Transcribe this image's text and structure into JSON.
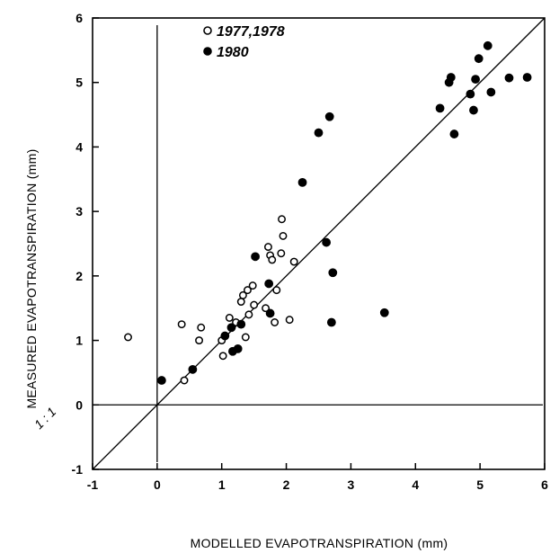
{
  "chart_data": {
    "type": "scatter",
    "title": "",
    "xlabel": "MODELLED EVAPOTRANSPIRATION (mm)",
    "ylabel": "MEASURED EVAPOTRANSPIRATION (mm)",
    "xlim": [
      -1,
      6
    ],
    "ylim": [
      -1,
      6
    ],
    "x_ticks": [
      "-1",
      "0",
      "1",
      "2",
      "3",
      "4",
      "5",
      "6"
    ],
    "y_ticks": [
      "-1",
      "0",
      "1",
      "2",
      "3",
      "4",
      "5",
      "6"
    ],
    "grid": false,
    "legend_position": "top-left",
    "reference_line": {
      "label": "1 : 1",
      "slope": 1,
      "intercept": 0
    },
    "reference_axes": {
      "x": 0,
      "y": 0
    },
    "series": [
      {
        "name": "1977,1978",
        "marker": "open-circle",
        "color": "#000000",
        "points": [
          [
            -0.45,
            1.05
          ],
          [
            0.38,
            1.25
          ],
          [
            0.42,
            0.38
          ],
          [
            0.68,
            1.2
          ],
          [
            0.65,
            1.0
          ],
          [
            1.0,
            1.0
          ],
          [
            1.02,
            0.76
          ],
          [
            1.12,
            1.35
          ],
          [
            1.22,
            1.28
          ],
          [
            1.3,
            1.6
          ],
          [
            1.33,
            1.7
          ],
          [
            1.37,
            1.05
          ],
          [
            1.4,
            1.78
          ],
          [
            1.42,
            1.4
          ],
          [
            1.48,
            1.85
          ],
          [
            1.5,
            1.55
          ],
          [
            1.68,
            1.5
          ],
          [
            1.72,
            2.45
          ],
          [
            1.75,
            2.32
          ],
          [
            1.78,
            2.25
          ],
          [
            1.82,
            1.28
          ],
          [
            1.85,
            1.78
          ],
          [
            1.92,
            2.35
          ],
          [
            1.93,
            2.88
          ],
          [
            1.95,
            2.62
          ],
          [
            2.05,
            1.32
          ],
          [
            2.12,
            2.22
          ]
        ]
      },
      {
        "name": "1980",
        "marker": "filled-circle",
        "color": "#000000",
        "points": [
          [
            0.07,
            0.38
          ],
          [
            0.55,
            0.55
          ],
          [
            1.05,
            1.07
          ],
          [
            1.15,
            1.2
          ],
          [
            1.17,
            0.83
          ],
          [
            1.25,
            0.87
          ],
          [
            1.3,
            1.25
          ],
          [
            1.52,
            2.3
          ],
          [
            1.73,
            1.88
          ],
          [
            1.75,
            1.42
          ],
          [
            2.25,
            3.45
          ],
          [
            2.5,
            4.22
          ],
          [
            2.62,
            2.52
          ],
          [
            2.67,
            4.47
          ],
          [
            2.7,
            1.28
          ],
          [
            2.72,
            2.05
          ],
          [
            3.52,
            1.43
          ],
          [
            4.38,
            4.6
          ],
          [
            4.52,
            5.0
          ],
          [
            4.55,
            5.08
          ],
          [
            4.6,
            4.2
          ],
          [
            4.85,
            4.82
          ],
          [
            4.9,
            4.57
          ],
          [
            4.93,
            5.05
          ],
          [
            4.98,
            5.37
          ],
          [
            5.12,
            5.57
          ],
          [
            5.17,
            4.85
          ],
          [
            5.45,
            5.07
          ],
          [
            5.73,
            5.08
          ]
        ]
      }
    ]
  }
}
